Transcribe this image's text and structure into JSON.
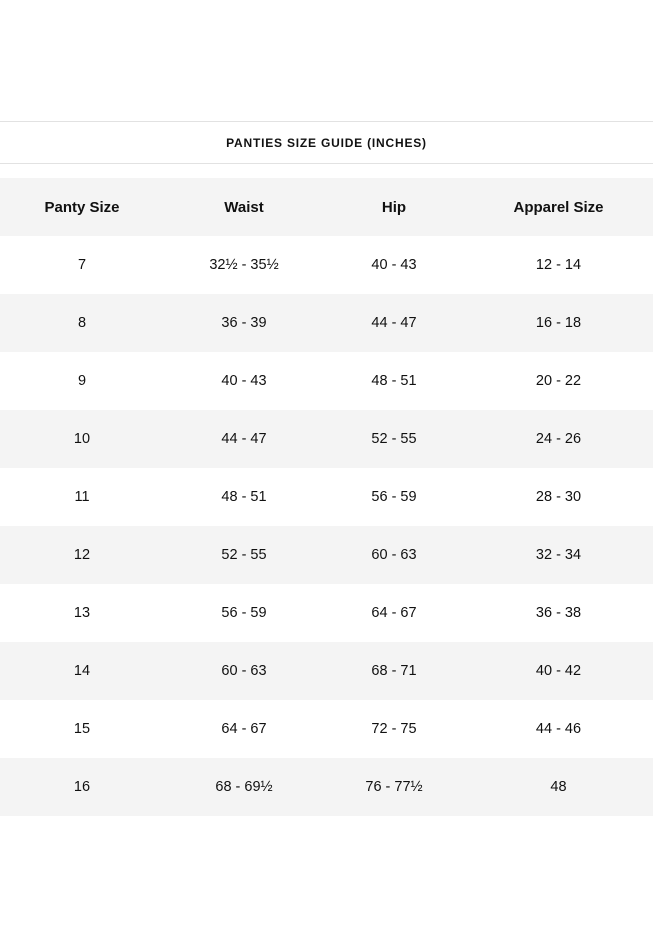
{
  "title": "PANTIES SIZE GUIDE (INCHES)",
  "colors": {
    "header_bg": "#f4f4f4",
    "alt_row_bg": "#f4f4f4",
    "divider": "#e2e2e2"
  },
  "table": {
    "headers": [
      "Panty Size",
      "Waist",
      "Hip",
      "Apparel Size"
    ],
    "rows": [
      [
        "7",
        "32½ - 35½",
        "40 - 43",
        "12 - 14"
      ],
      [
        "8",
        "36 - 39",
        "44 - 47",
        "16 - 18"
      ],
      [
        "9",
        "40 - 43",
        "48 - 51",
        "20 - 22"
      ],
      [
        "10",
        "44 - 47",
        "52 - 55",
        "24 - 26"
      ],
      [
        "11",
        "48 - 51",
        "56 - 59",
        "28 - 30"
      ],
      [
        "12",
        "52 - 55",
        "60 - 63",
        "32 - 34"
      ],
      [
        "13",
        "56 - 59",
        "64 - 67",
        "36 - 38"
      ],
      [
        "14",
        "60 - 63",
        "68 - 71",
        "40 - 42"
      ],
      [
        "15",
        "64 - 67",
        "72 - 75",
        "44 - 46"
      ],
      [
        "16",
        "68 - 69½",
        "76 - 77½",
        "48"
      ]
    ]
  }
}
